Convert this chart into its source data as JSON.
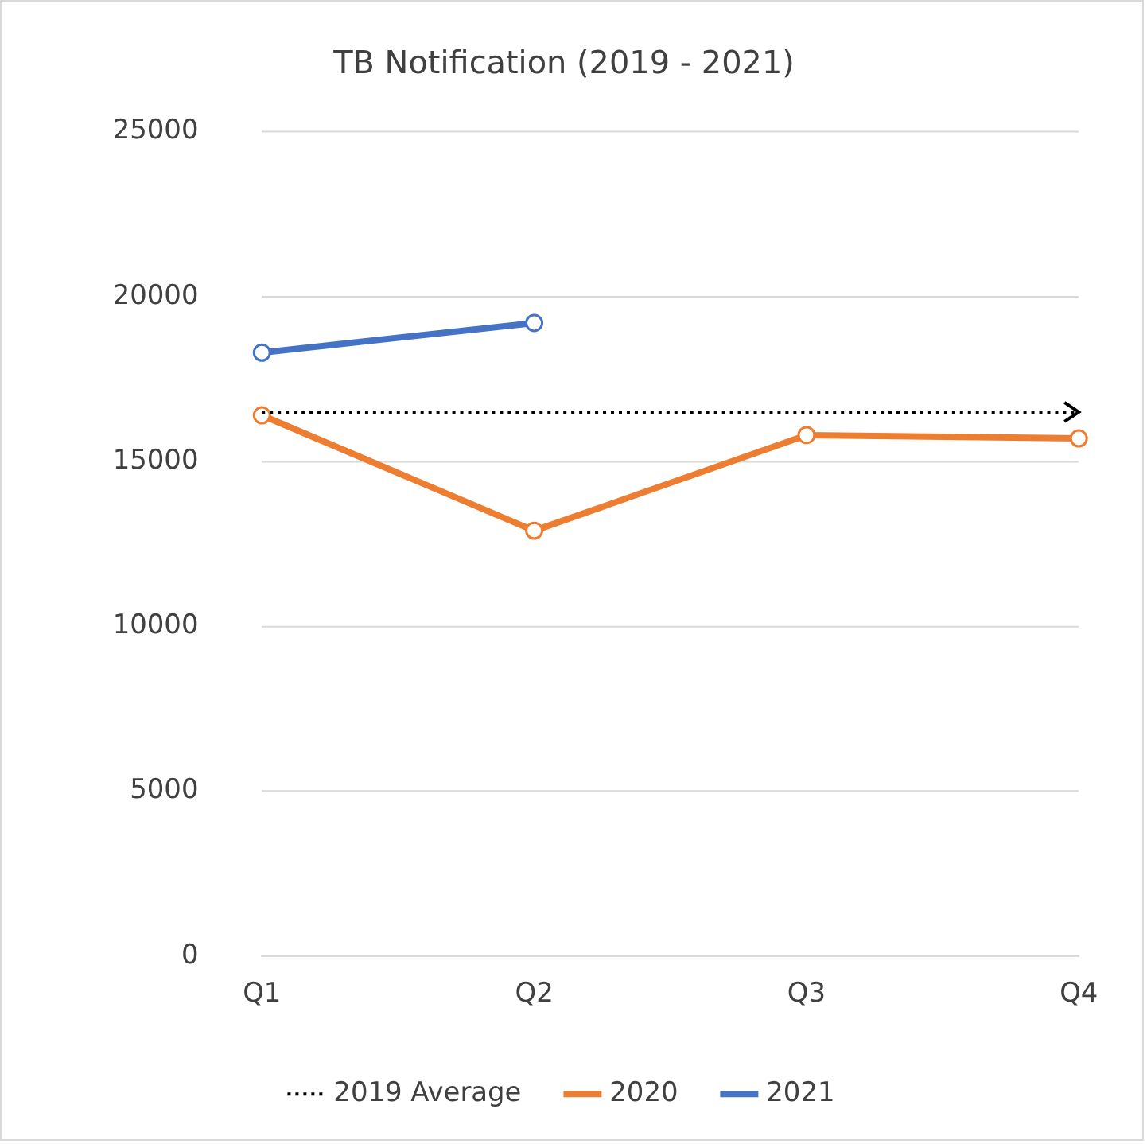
{
  "chart_data": {
    "type": "line",
    "title": "TB Notification (2019 - 2021)",
    "categories": [
      "Q1",
      "Q2",
      "Q3",
      "Q4"
    ],
    "series": [
      {
        "name": "2019 Average",
        "color": "#000000",
        "values": [
          16500,
          16500,
          16500,
          16500
        ],
        "line_style": "dotted",
        "marker": "none"
      },
      {
        "name": "2020",
        "color": "#ed7d31",
        "values": [
          16400,
          12900,
          15800,
          15700
        ],
        "line_style": "solid",
        "marker": "circle"
      },
      {
        "name": "2021",
        "color": "#4472c4",
        "values": [
          18300,
          19200,
          null,
          null
        ],
        "line_style": "solid",
        "marker": "circle"
      }
    ],
    "ylim": [
      0,
      25000
    ],
    "yticks": [
      0,
      5000,
      10000,
      15000,
      20000,
      25000
    ],
    "grid": "y",
    "legend": "bottom"
  }
}
